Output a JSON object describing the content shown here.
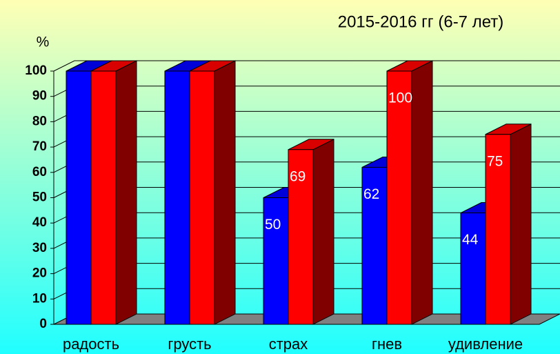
{
  "chart_data": {
    "type": "bar3d",
    "title": "2015-2016 гг (6-7 лет)",
    "y_label": "%",
    "categories": [
      "радость",
      "грусть",
      "страх",
      "гнев",
      "удивление"
    ],
    "series": [
      {
        "color": "#0000ff",
        "values": [
          100,
          100,
          50,
          62,
          44
        ],
        "labeled": [
          false,
          false,
          true,
          true,
          true
        ]
      },
      {
        "color": "#ff0000",
        "values": [
          100,
          100,
          69,
          100,
          75
        ],
        "labeled": [
          false,
          false,
          true,
          true,
          true
        ]
      }
    ],
    "ylim": [
      0,
      100
    ],
    "yticks": [
      0,
      10,
      20,
      30,
      40,
      50,
      60,
      70,
      80,
      90,
      100
    ],
    "grid": true
  }
}
